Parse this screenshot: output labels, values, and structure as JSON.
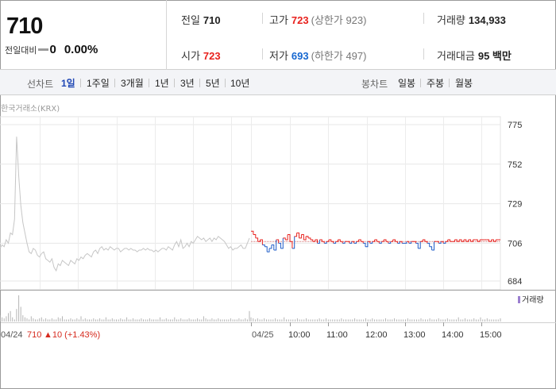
{
  "quote": {
    "price": "710",
    "change_label": "전일대비",
    "change_value": "0",
    "change_rate": "0.00%",
    "prev_close": {
      "label": "전일",
      "value": "710"
    },
    "open": {
      "label": "시가",
      "value": "723"
    },
    "high": {
      "label": "고가",
      "value": "723",
      "limit_text": "(상한가 923)"
    },
    "low": {
      "label": "저가",
      "value": "693",
      "limit_text": "(하한가 497)"
    },
    "volume": {
      "label": "거래량",
      "value": "134,933"
    },
    "amount": {
      "label": "거래대금",
      "value": "95 백만"
    }
  },
  "period_bar": {
    "line_label": "선차트",
    "line_options": [
      "1일",
      "1주일",
      "3개월",
      "1년",
      "3년",
      "5년",
      "10년"
    ],
    "line_active": "1일",
    "candle_label": "봉차트",
    "candle_options": [
      "일봉",
      "주봉",
      "월봉"
    ]
  },
  "chart": {
    "source": "한국거래소(KRX)",
    "volume_legend": "거래량",
    "footer_date": "04/24",
    "footer_price": "710",
    "footer_change": "▲10 (+1.43%)"
  },
  "chart_data": {
    "type": "line",
    "y_ticks": [
      775,
      752,
      729,
      706,
      684
    ],
    "ylim": [
      684,
      775
    ],
    "x_ticks": [
      "04/24",
      "04/25",
      "10:00",
      "11:00",
      "12:00",
      "13:00",
      "14:00",
      "15:00"
    ],
    "reference_price": 707,
    "series": [
      {
        "period": "04/24",
        "color": "#c6c6c6",
        "values": [
          703,
          705,
          704,
          708,
          706,
          712,
          711,
          720,
          768,
          745,
          728,
          718,
          712,
          706,
          701,
          700,
          703,
          702,
          699,
          698,
          700,
          701,
          697,
          696,
          695,
          697,
          692,
          690,
          694,
          693,
          696,
          695,
          694,
          693,
          696,
          695,
          694,
          697,
          696,
          698,
          697,
          699,
          700,
          699,
          698,
          701,
          702,
          700,
          703,
          704,
          702,
          703,
          702,
          704,
          703,
          702,
          703,
          703,
          701,
          702,
          703,
          703,
          702,
          703,
          702,
          702,
          701,
          702,
          702,
          703,
          702,
          703,
          702,
          702,
          701,
          702,
          701,
          702,
          703,
          703,
          702,
          704,
          703,
          702,
          705,
          707,
          704,
          708,
          703,
          704,
          706,
          704,
          707,
          706,
          708,
          710,
          709,
          708,
          709,
          707,
          708,
          709,
          707,
          709,
          708,
          710,
          709,
          708,
          707,
          705,
          703,
          704,
          702,
          703,
          703,
          704,
          705,
          703,
          703,
          706,
          709
        ]
      },
      {
        "period": "04/25",
        "up_color": "#e8211d",
        "down_color": "#1e5cc8",
        "values": [
          713,
          711,
          709,
          707,
          708,
          705,
          704,
          701,
          703,
          705,
          702,
          708,
          706,
          703,
          709,
          708,
          711,
          707,
          703,
          710,
          712,
          709,
          711,
          708,
          710,
          709,
          708,
          707,
          708,
          706,
          708,
          707,
          706,
          707,
          708,
          707,
          706,
          707,
          708,
          707,
          706,
          707,
          707,
          706,
          707,
          706,
          707,
          708,
          707,
          706,
          704,
          707,
          706,
          707,
          708,
          707,
          706,
          707,
          708,
          707,
          706,
          707,
          708,
          707,
          706,
          707,
          706,
          706,
          707,
          706,
          707,
          707,
          706,
          703,
          707,
          708,
          707,
          706,
          704,
          702,
          707,
          707,
          706,
          707,
          706,
          707,
          708,
          707,
          707,
          708,
          707,
          708,
          707,
          708,
          707,
          708,
          707,
          708,
          708,
          707,
          708,
          708,
          708,
          708,
          707,
          708,
          707,
          708,
          708,
          708
        ]
      }
    ],
    "volume_values": [
      6,
      4,
      3,
      5,
      8,
      10,
      4,
      2,
      12,
      25,
      14,
      6,
      4,
      3,
      2,
      5,
      3,
      2,
      2,
      3,
      4,
      2,
      3,
      2,
      2,
      3,
      2,
      2,
      4,
      3,
      5,
      2,
      2,
      2,
      3,
      2,
      2,
      3,
      2,
      5,
      2,
      3,
      2,
      2,
      2,
      3,
      2,
      2,
      3,
      2,
      2,
      4,
      2,
      2,
      3,
      2,
      2,
      2,
      3,
      2,
      2,
      4,
      2,
      2,
      3,
      2,
      2,
      2,
      3,
      2,
      2,
      2,
      3,
      2,
      2,
      2,
      2,
      4,
      2,
      2,
      3,
      2,
      2,
      2,
      4,
      2,
      2,
      3,
      2,
      2,
      2,
      3,
      2,
      2,
      2,
      3,
      2,
      2,
      5,
      3,
      2,
      2,
      3,
      2,
      2,
      3,
      2,
      2,
      2,
      2,
      2,
      3,
      2,
      2,
      2,
      3,
      2,
      2,
      3,
      2,
      10,
      4,
      3,
      2,
      3,
      2,
      2,
      3,
      2,
      2,
      2,
      2,
      3,
      2,
      2,
      2,
      4,
      2,
      2,
      2,
      2,
      2,
      3,
      2,
      2,
      2,
      3,
      2,
      2,
      2,
      2,
      2,
      3,
      2,
      2,
      3,
      2,
      2,
      2,
      2,
      2,
      2,
      3,
      2,
      2,
      2,
      2,
      2,
      3,
      2,
      2,
      2,
      2,
      3,
      2,
      2,
      3,
      2,
      2,
      2,
      2,
      2,
      3,
      2,
      2,
      2,
      3,
      2,
      2,
      2,
      2,
      2,
      3,
      2,
      2,
      2,
      2,
      2,
      3,
      2,
      2,
      2,
      3,
      2,
      2,
      2,
      3,
      2,
      2,
      2,
      3,
      2,
      2,
      2,
      2,
      4,
      2,
      2,
      3,
      2,
      2,
      2,
      3,
      2,
      2,
      4,
      2,
      2,
      3,
      2,
      2,
      2,
      2,
      2,
      3
    ]
  }
}
